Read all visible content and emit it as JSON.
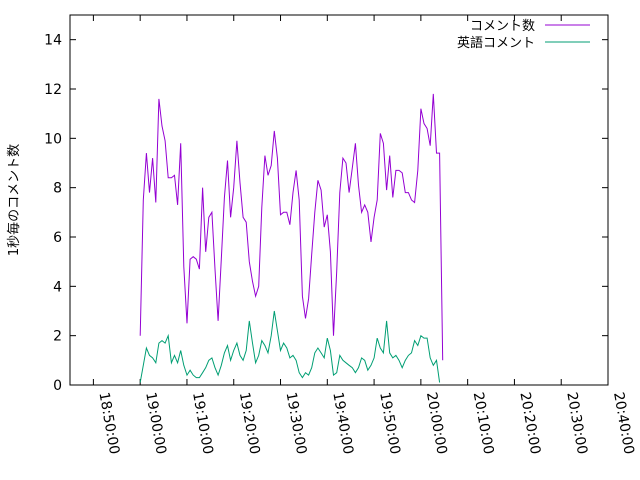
{
  "chart_data": {
    "type": "line",
    "title": "",
    "xlabel": "",
    "ylabel": "1秒毎のコメント数",
    "xlim": [
      "18:45:00",
      "20:40:00"
    ],
    "ylim": [
      0,
      15
    ],
    "x_ticks": [
      "18:50:00",
      "19:00:00",
      "19:10:00",
      "19:20:00",
      "19:30:00",
      "19:40:00",
      "19:50:00",
      "20:00:00",
      "20:10:00",
      "20:20:00",
      "20:30:00",
      "20:40:00"
    ],
    "y_ticks": [
      "0",
      "2",
      "4",
      "6",
      "8",
      "10",
      "12",
      "14"
    ],
    "grid": false,
    "legend": "top-right",
    "series": [
      {
        "name": "コメント数",
        "color": "#9400d3",
        "points": [
          [
            "19:00:00",
            2.0
          ],
          [
            "19:00:40",
            7.5
          ],
          [
            "19:01:20",
            9.4
          ],
          [
            "19:02:00",
            7.8
          ],
          [
            "19:02:40",
            9.2
          ],
          [
            "19:03:20",
            7.4
          ],
          [
            "19:04:00",
            11.6
          ],
          [
            "19:04:40",
            10.5
          ],
          [
            "19:05:20",
            9.9
          ],
          [
            "19:06:00",
            8.4
          ],
          [
            "19:06:40",
            8.4
          ],
          [
            "19:07:20",
            8.5
          ],
          [
            "19:08:00",
            7.3
          ],
          [
            "19:08:40",
            9.8
          ],
          [
            "19:09:20",
            4.8
          ],
          [
            "19:10:00",
            2.5
          ],
          [
            "19:10:40",
            5.1
          ],
          [
            "19:11:20",
            5.2
          ],
          [
            "19:12:00",
            5.1
          ],
          [
            "19:12:40",
            4.7
          ],
          [
            "19:13:20",
            8.0
          ],
          [
            "19:14:00",
            5.4
          ],
          [
            "19:14:40",
            6.8
          ],
          [
            "19:15:20",
            7.0
          ],
          [
            "19:16:00",
            4.7
          ],
          [
            "19:16:40",
            2.6
          ],
          [
            "19:17:20",
            5.1
          ],
          [
            "19:18:00",
            7.6
          ],
          [
            "19:18:40",
            9.1
          ],
          [
            "19:19:20",
            6.8
          ],
          [
            "19:20:00",
            8.0
          ],
          [
            "19:20:40",
            9.9
          ],
          [
            "19:21:20",
            8.2
          ],
          [
            "19:22:00",
            6.8
          ],
          [
            "19:22:40",
            6.6
          ],
          [
            "19:23:20",
            5.0
          ],
          [
            "19:24:00",
            4.2
          ],
          [
            "19:24:40",
            3.6
          ],
          [
            "19:25:20",
            4.0
          ],
          [
            "19:26:00",
            7.2
          ],
          [
            "19:26:40",
            9.3
          ],
          [
            "19:27:20",
            8.5
          ],
          [
            "19:28:00",
            8.9
          ],
          [
            "19:28:40",
            10.3
          ],
          [
            "19:29:20",
            9.2
          ],
          [
            "19:30:00",
            6.9
          ],
          [
            "19:30:40",
            7.0
          ],
          [
            "19:31:20",
            7.0
          ],
          [
            "19:32:00",
            6.5
          ],
          [
            "19:32:40",
            7.8
          ],
          [
            "19:33:20",
            8.7
          ],
          [
            "19:34:00",
            7.5
          ],
          [
            "19:34:40",
            3.6
          ],
          [
            "19:35:20",
            2.7
          ],
          [
            "19:36:00",
            3.5
          ],
          [
            "19:36:40",
            5.3
          ],
          [
            "19:37:20",
            7.0
          ],
          [
            "19:38:00",
            8.3
          ],
          [
            "19:38:40",
            7.9
          ],
          [
            "19:39:20",
            6.4
          ],
          [
            "19:40:00",
            6.9
          ],
          [
            "19:40:40",
            5.4
          ],
          [
            "19:41:20",
            2.0
          ],
          [
            "19:42:00",
            4.6
          ],
          [
            "19:42:40",
            7.8
          ],
          [
            "19:43:20",
            9.2
          ],
          [
            "19:44:00",
            9.0
          ],
          [
            "19:44:40",
            7.8
          ],
          [
            "19:45:20",
            8.8
          ],
          [
            "19:46:00",
            9.8
          ],
          [
            "19:46:40",
            8.1
          ],
          [
            "19:47:20",
            7.0
          ],
          [
            "19:48:00",
            7.3
          ],
          [
            "19:48:40",
            7.0
          ],
          [
            "19:49:20",
            5.8
          ],
          [
            "19:50:00",
            6.8
          ],
          [
            "19:50:40",
            7.5
          ],
          [
            "19:51:20",
            10.2
          ],
          [
            "19:52:00",
            9.8
          ],
          [
            "19:52:40",
            7.9
          ],
          [
            "19:53:20",
            9.3
          ],
          [
            "19:54:00",
            7.6
          ],
          [
            "19:54:40",
            8.7
          ],
          [
            "19:55:20",
            8.7
          ],
          [
            "19:56:00",
            8.6
          ],
          [
            "19:56:40",
            7.8
          ],
          [
            "19:57:20",
            7.8
          ],
          [
            "19:58:00",
            7.5
          ],
          [
            "19:58:40",
            7.4
          ],
          [
            "19:59:20",
            8.7
          ],
          [
            "20:00:00",
            11.2
          ],
          [
            "20:00:40",
            10.6
          ],
          [
            "20:01:20",
            10.4
          ],
          [
            "20:02:00",
            9.7
          ],
          [
            "20:02:40",
            11.8
          ],
          [
            "20:03:20",
            9.4
          ],
          [
            "20:04:00",
            9.4
          ],
          [
            "20:04:40",
            1.0
          ]
        ]
      },
      {
        "name": "英語コメント",
        "color": "#009e73",
        "points": [
          [
            "19:00:00",
            0.1
          ],
          [
            "19:00:40",
            0.8
          ],
          [
            "19:01:20",
            1.5
          ],
          [
            "19:02:00",
            1.2
          ],
          [
            "19:02:40",
            1.1
          ],
          [
            "19:03:20",
            0.9
          ],
          [
            "19:04:00",
            1.7
          ],
          [
            "19:04:40",
            1.8
          ],
          [
            "19:05:20",
            1.7
          ],
          [
            "19:06:00",
            2.0
          ],
          [
            "19:06:40",
            0.9
          ],
          [
            "19:07:20",
            1.2
          ],
          [
            "19:08:00",
            0.9
          ],
          [
            "19:08:40",
            1.4
          ],
          [
            "19:09:20",
            0.8
          ],
          [
            "19:10:00",
            0.4
          ],
          [
            "19:10:40",
            0.6
          ],
          [
            "19:11:20",
            0.4
          ],
          [
            "19:12:00",
            0.3
          ],
          [
            "19:12:40",
            0.3
          ],
          [
            "19:13:20",
            0.5
          ],
          [
            "19:14:00",
            0.7
          ],
          [
            "19:14:40",
            1.0
          ],
          [
            "19:15:20",
            1.1
          ],
          [
            "19:16:00",
            0.7
          ],
          [
            "19:16:40",
            0.4
          ],
          [
            "19:17:20",
            0.8
          ],
          [
            "19:18:00",
            1.3
          ],
          [
            "19:18:40",
            1.6
          ],
          [
            "19:19:20",
            1.0
          ],
          [
            "19:20:00",
            1.4
          ],
          [
            "19:20:40",
            1.7
          ],
          [
            "19:21:20",
            1.2
          ],
          [
            "19:22:00",
            1.0
          ],
          [
            "19:22:40",
            1.4
          ],
          [
            "19:23:20",
            2.6
          ],
          [
            "19:24:00",
            1.7
          ],
          [
            "19:24:40",
            0.9
          ],
          [
            "19:25:20",
            1.2
          ],
          [
            "19:26:00",
            1.8
          ],
          [
            "19:26:40",
            1.6
          ],
          [
            "19:27:20",
            1.3
          ],
          [
            "19:28:00",
            2.0
          ],
          [
            "19:28:40",
            3.0
          ],
          [
            "19:29:20",
            2.2
          ],
          [
            "19:30:00",
            1.4
          ],
          [
            "19:30:40",
            1.7
          ],
          [
            "19:31:20",
            1.5
          ],
          [
            "19:32:00",
            1.1
          ],
          [
            "19:32:40",
            1.2
          ],
          [
            "19:33:20",
            1.0
          ],
          [
            "19:34:00",
            0.5
          ],
          [
            "19:34:40",
            0.3
          ],
          [
            "19:35:20",
            0.5
          ],
          [
            "19:36:00",
            0.4
          ],
          [
            "19:36:40",
            0.7
          ],
          [
            "19:37:20",
            1.3
          ],
          [
            "19:38:00",
            1.5
          ],
          [
            "19:38:40",
            1.3
          ],
          [
            "19:39:20",
            1.1
          ],
          [
            "19:40:00",
            1.9
          ],
          [
            "19:40:40",
            1.4
          ],
          [
            "19:41:20",
            0.4
          ],
          [
            "19:42:00",
            0.5
          ],
          [
            "19:42:40",
            1.2
          ],
          [
            "19:43:20",
            1.0
          ],
          [
            "19:44:00",
            0.9
          ],
          [
            "19:44:40",
            0.8
          ],
          [
            "19:45:20",
            0.7
          ],
          [
            "19:46:00",
            0.5
          ],
          [
            "19:46:40",
            0.7
          ],
          [
            "19:47:20",
            1.1
          ],
          [
            "19:48:00",
            1.0
          ],
          [
            "19:48:40",
            0.6
          ],
          [
            "19:49:20",
            0.8
          ],
          [
            "19:50:00",
            1.1
          ],
          [
            "19:50:40",
            1.9
          ],
          [
            "19:51:20",
            1.5
          ],
          [
            "19:52:00",
            1.3
          ],
          [
            "19:52:40",
            2.6
          ],
          [
            "19:53:20",
            1.3
          ],
          [
            "19:54:00",
            1.1
          ],
          [
            "19:54:40",
            1.2
          ],
          [
            "19:55:20",
            1.0
          ],
          [
            "19:56:00",
            0.7
          ],
          [
            "19:56:40",
            1.0
          ],
          [
            "19:57:20",
            1.2
          ],
          [
            "19:58:00",
            1.3
          ],
          [
            "19:58:40",
            1.8
          ],
          [
            "19:59:20",
            1.6
          ],
          [
            "20:00:00",
            2.0
          ],
          [
            "20:00:40",
            1.9
          ],
          [
            "20:01:20",
            1.9
          ],
          [
            "20:02:00",
            1.1
          ],
          [
            "20:02:40",
            0.8
          ],
          [
            "20:03:20",
            1.0
          ],
          [
            "20:04:00",
            0.1
          ]
        ]
      }
    ]
  }
}
